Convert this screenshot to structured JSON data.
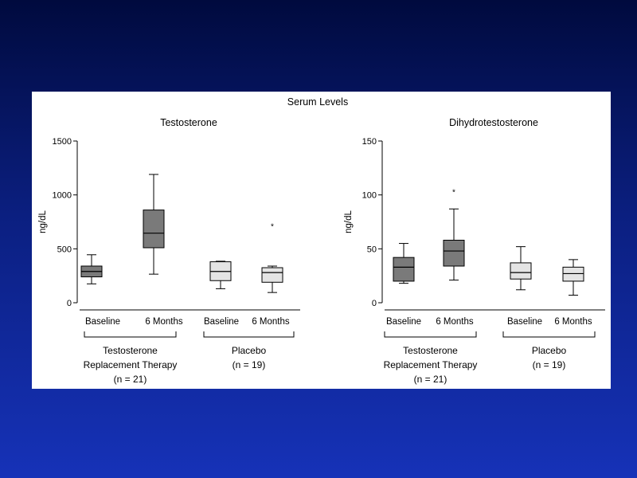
{
  "slide": {
    "background_top": "#000a3e",
    "background_bottom": "#1632b8"
  },
  "chart_data": [
    {
      "type": "boxplot",
      "figure_title": "Serum Levels",
      "title": "Testosterone",
      "ylabel": "ng/dL",
      "ylim": [
        0,
        1500
      ],
      "yticks": [
        "0",
        "500",
        "1000",
        "1500"
      ],
      "categories": [
        "Baseline",
        "6 Months",
        "Baseline",
        "6 Months"
      ],
      "groups": [
        {
          "label_lines": [
            "Testosterone",
            "Replacement Therapy",
            "(n = 21)"
          ]
        },
        {
          "label_lines": [
            "Placebo",
            "(n = 19)"
          ]
        }
      ],
      "boxes": [
        {
          "group": 0,
          "fill": "#7a7a7a",
          "min": 175,
          "q1": 240,
          "median": 290,
          "q3": 340,
          "max": 445,
          "outliers": []
        },
        {
          "group": 0,
          "fill": "#7a7a7a",
          "min": 265,
          "q1": 510,
          "median": 645,
          "q3": 860,
          "max": 1190,
          "outliers": []
        },
        {
          "group": 1,
          "fill": "#e4e4e4",
          "min": 130,
          "q1": 205,
          "median": 290,
          "q3": 380,
          "max": 385,
          "outliers": []
        },
        {
          "group": 1,
          "fill": "#e4e4e4",
          "min": 95,
          "q1": 190,
          "median": 280,
          "q3": 325,
          "max": 340,
          "outliers": [
            720
          ]
        }
      ]
    },
    {
      "type": "boxplot",
      "title": "Dihydrotestosterone",
      "ylabel": "ng/dL",
      "ylim": [
        0,
        150
      ],
      "yticks": [
        "0",
        "50",
        "100",
        "150"
      ],
      "categories": [
        "Baseline",
        "6 Months",
        "Baseline",
        "6 Months"
      ],
      "groups": [
        {
          "label_lines": [
            "Testosterone",
            "Replacement Therapy",
            "(n = 21)"
          ]
        },
        {
          "label_lines": [
            "Placebo",
            "(n = 19)"
          ]
        }
      ],
      "boxes": [
        {
          "group": 0,
          "fill": "#7a7a7a",
          "min": 18,
          "q1": 20,
          "median": 33,
          "q3": 42,
          "max": 55,
          "outliers": []
        },
        {
          "group": 0,
          "fill": "#7a7a7a",
          "min": 21,
          "q1": 34,
          "median": 48,
          "q3": 58,
          "max": 87,
          "outliers": [
            104
          ]
        },
        {
          "group": 1,
          "fill": "#e4e4e4",
          "min": 12,
          "q1": 22,
          "median": 28,
          "q3": 37,
          "max": 52,
          "outliers": []
        },
        {
          "group": 1,
          "fill": "#e4e4e4",
          "min": 7,
          "q1": 20,
          "median": 27,
          "q3": 33,
          "max": 40,
          "outliers": []
        }
      ]
    }
  ]
}
